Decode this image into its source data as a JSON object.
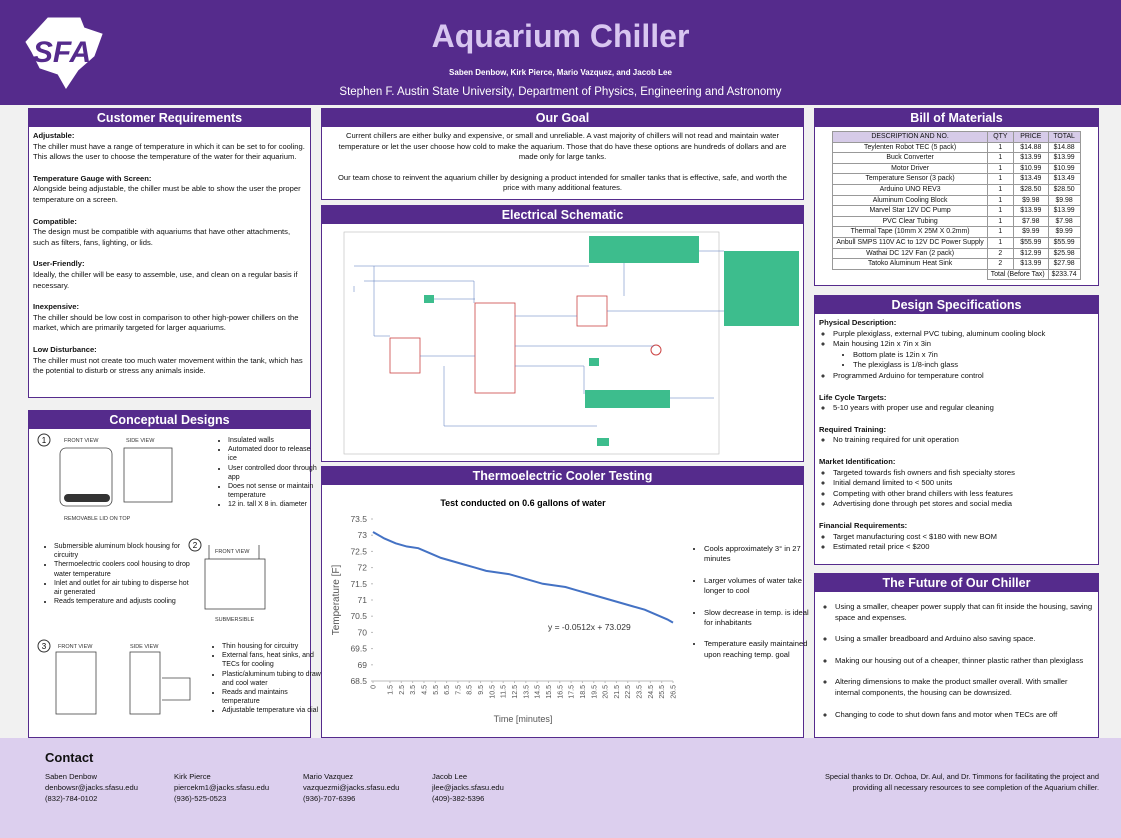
{
  "header": {
    "logo": "SFA",
    "title": "Aquarium Chiller",
    "authors": "Saben Denbow, Kirk Pierce, Mario Vazquez, and Jacob Lee",
    "affiliation": "Stephen F. Austin State University, Department of Physics, Engineering and Astronomy"
  },
  "customer_requirements": {
    "title": "Customer Requirements",
    "items": [
      {
        "heading": "Adjustable:",
        "text": "The chiller must have a range of temperature in which it can be set to for cooling. This allows the user to choose the temperature of the water for their aquarium."
      },
      {
        "heading": "Temperature Gauge with Screen:",
        "text": "Alongside being adjustable, the chiller must be able to show the user the proper temperature on a screen."
      },
      {
        "heading": "Compatible:",
        "text": "The design must be compatible with aquariums that have other attachments, such as filters, fans, lighting, or lids."
      },
      {
        "heading": "User-Friendly:",
        "text": "Ideally, the chiller will be easy to assemble, use, and clean on a regular basis if necessary."
      },
      {
        "heading": "Inexpensive:",
        "text": "The chiller should be low cost in comparison to other high-power chillers on the market, which are primarily targeted for larger aquariums."
      },
      {
        "heading": "Low Disturbance:",
        "text": "The chiller must not create too much water movement within the tank, which has the potential to disturb or stress any animals inside."
      }
    ]
  },
  "conceptual_designs": {
    "title": "Conceptual Designs",
    "designs": [
      {
        "number": "1",
        "labels": [
          "FRONT VIEW",
          "SIDE VIEW",
          "REMOVABLE LID ON TOP"
        ],
        "bullets": [
          "Insulated walls",
          "Automated door to release ice",
          "User controlled door through app",
          "Does not sense or maintain temperature",
          "12 in. tall X 8 in. diameter"
        ]
      },
      {
        "number": "2",
        "labels": [
          "FRONT VIEW",
          "SUBMERSIBLE"
        ],
        "bullets": [
          "Submersible aluminum block housing for circuitry",
          "Thermoelectric coolers cool housing to drop water temperature",
          "Inlet and outlet for air tubing to disperse hot air generated",
          "Reads temperature and adjusts cooling"
        ]
      },
      {
        "number": "3",
        "labels": [
          "FRONT VIEW",
          "SIDE VIEW"
        ],
        "bullets": [
          "Thin housing for circuitry",
          "External fans, heat sinks, and TECs for cooling",
          "Plastic/aluminum tubing to draw and cool water",
          "Reads and maintains temperature",
          "Adjustable temperature via dial"
        ]
      }
    ]
  },
  "goal": {
    "title": "Our Goal",
    "paragraphs": [
      "Current chillers are either bulky and expensive, or small and unreliable. A vast majority of chillers will not read and maintain water temperature or let the user choose how cold to make the aquarium. Those that do have these options are hundreds of dollars and are made only for large tanks.",
      "Our team chose to reinvent the aquarium chiller by designing a product intended for smaller tanks that is effective, safe, and worth the price with many additional features."
    ]
  },
  "schematic": {
    "title": "Electrical Schematic"
  },
  "testing": {
    "title": "Thermoelectric Cooler Testing",
    "bullets": [
      "Cools approximately 3° in 27 minutes",
      "Larger volumes of water take longer to cool",
      "Slow decrease in temp. is ideal for inhabitants",
      "Temperature easily maintained upon reaching temp. goal"
    ]
  },
  "chart_data": {
    "type": "line",
    "title": "Test conducted on 0.6 gallons of water",
    "x_label": "Time [minutes]",
    "y_label": "Temperature [F]",
    "annotation": "y = -0.0512x + 73.029",
    "x": [
      0,
      1,
      2,
      3,
      4,
      5,
      6,
      7,
      8,
      9,
      10,
      11,
      12,
      13,
      14,
      15,
      16,
      17,
      18,
      19,
      20,
      21,
      22,
      23,
      24,
      25,
      26,
      26.5
    ],
    "series": [
      {
        "name": "Temperature",
        "color": "#4472c4",
        "values": [
          73.1,
          72.9,
          72.75,
          72.65,
          72.6,
          72.45,
          72.3,
          72.2,
          72.1,
          72.0,
          71.9,
          71.85,
          71.8,
          71.7,
          71.6,
          71.5,
          71.45,
          71.4,
          71.3,
          71.2,
          71.1,
          71.0,
          70.9,
          70.8,
          70.7,
          70.55,
          70.4,
          70.3
        ]
      }
    ],
    "xlim": [
      0,
      26.5
    ],
    "xticks": [
      0,
      1.5,
      2.5,
      3.5,
      4.5,
      5.5,
      6.5,
      7.5,
      8.5,
      9.5,
      10.5,
      11.5,
      12.5,
      13.5,
      14.5,
      15.5,
      16.5,
      17.5,
      18.5,
      19.5,
      20.5,
      21.5,
      22.5,
      23.5,
      24.5,
      25.5,
      26.5
    ],
    "ylim": [
      68.5,
      73.5
    ],
    "yticks": [
      68.5,
      69,
      69.5,
      70,
      70.5,
      71,
      71.5,
      72,
      72.5,
      73,
      73.5
    ],
    "grid": false
  },
  "bom": {
    "title": "Bill of Materials",
    "columns": [
      "DESCRIPTION AND NO.",
      "QTY",
      "PRICE",
      "TOTAL"
    ],
    "rows": [
      [
        "Teylenten Robot TEC (5 pack)",
        "1",
        "$14.88",
        "$14.88"
      ],
      [
        "Buck Converter",
        "1",
        "$13.99",
        "$13.99"
      ],
      [
        "Motor Driver",
        "1",
        "$10.99",
        "$10.99"
      ],
      [
        "Temperature Sensor (3 pack)",
        "1",
        "$13.49",
        "$13.49"
      ],
      [
        "Arduino UNO REV3",
        "1",
        "$28.50",
        "$28.50"
      ],
      [
        "Aluminum Cooling Block",
        "1",
        "$9.98",
        "$9.98"
      ],
      [
        "Marvel Star 12V DC Pump",
        "1",
        "$13.99",
        "$13.99"
      ],
      [
        "PVC Clear Tubing",
        "1",
        "$7.98",
        "$7.98"
      ],
      [
        "Thermal Tape (10mm X 25M X 0.2mm)",
        "1",
        "$9.99",
        "$9.99"
      ],
      [
        "Anbull SMPS 110V AC to 12V DC Power Supply",
        "1",
        "$55.99",
        "$55.99"
      ],
      [
        "Wathai DC 12V Fan (2 pack)",
        "2",
        "$12.99",
        "$25.98"
      ],
      [
        "Tatoko Aluminum Heat Sink",
        "2",
        "$13.99",
        "$27.98"
      ]
    ],
    "total_label": "Total (Before Tax)",
    "total": "$233.74"
  },
  "design_specs": {
    "title": "Design Specifications",
    "sections": [
      {
        "heading": "Physical Description:",
        "items": [
          {
            "text": "Purple plexiglass, external PVC tubing, aluminum cooling block"
          },
          {
            "text": "Main housing 12in x 7in x 3in",
            "sub": [
              "Bottom plate is 12in x 7in",
              "The plexiglass is 1/8-inch glass"
            ]
          },
          {
            "text": "Programmed Arduino for temperature control"
          }
        ]
      },
      {
        "heading": "Life Cycle Targets:",
        "items": [
          {
            "text": "5-10 years with proper use and regular cleaning"
          }
        ]
      },
      {
        "heading": "Required Training:",
        "items": [
          {
            "text": "No training required for unit operation"
          }
        ]
      },
      {
        "heading": "Market Identification:",
        "items": [
          {
            "text": "Targeted towards fish owners and fish specialty stores"
          },
          {
            "text": "Initial demand limited to < 500 units"
          },
          {
            "text": "Competing with other brand chillers with less features"
          },
          {
            "text": "Advertising done through pet stores and social media"
          }
        ]
      },
      {
        "heading": "Financial Requirements:",
        "items": [
          {
            "text": "Target manufacturing cost < $180 with new BOM"
          },
          {
            "text": "Estimated retail price < $200"
          }
        ]
      }
    ]
  },
  "future": {
    "title": "The Future of Our Chiller",
    "items": [
      "Using a smaller, cheaper power supply that can fit inside the housing, saving space and expenses.",
      "Using a smaller breadboard and Arduino also saving space.",
      "Making our housing out of a cheaper, thinner plastic rather than plexiglass",
      "Altering dimensions to make the product smaller overall. With smaller internal components, the housing can be downsized.",
      "Changing to code to shut down fans and motor when TECs are off"
    ]
  },
  "contact": {
    "title": "Contact",
    "people": [
      {
        "name": "Saben Denbow",
        "email": "denbowsr@jacks.sfasu.edu",
        "phone": "(832)-784-0102"
      },
      {
        "name": "Kirk Pierce",
        "email": "piercekm1@jacks.sfasu.edu",
        "phone": "(936)-525-0523"
      },
      {
        "name": "Mario Vazquez",
        "email": "vazquezmi@jacks.sfasu.edu",
        "phone": "(936)-707-6396"
      },
      {
        "name": "Jacob Lee",
        "email": "jlee@jacks.sfasu.edu",
        "phone": "(409)-382-5396"
      }
    ],
    "thanks": "Special thanks to Dr. Ochoa, Dr. Aul, and Dr. Timmons for facilitating the project and providing all necessary resources to see completion of the Aquarium chiller."
  }
}
